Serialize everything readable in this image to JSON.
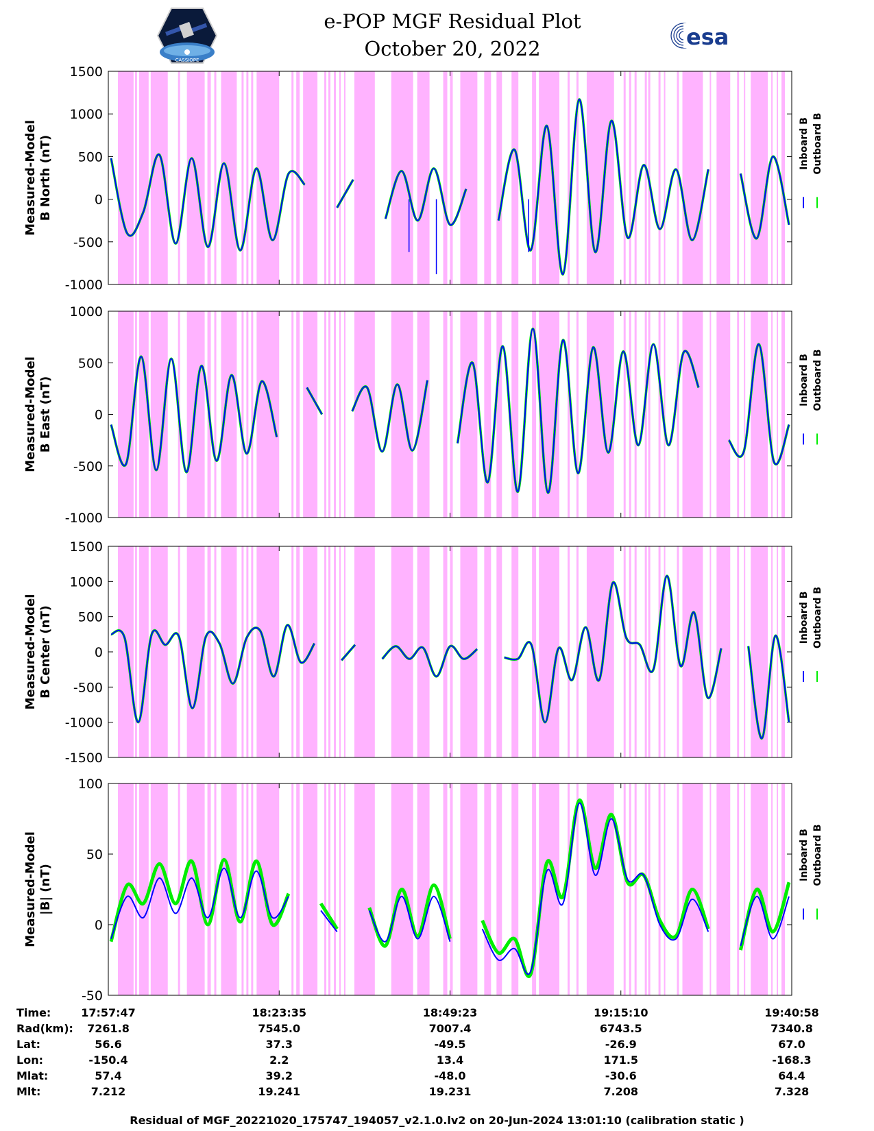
{
  "title_line1": "e-POP MGF Residual Plot",
  "title_line2": "October 20, 2022",
  "logo_left": "CASSIOPE",
  "logo_right": "esa",
  "legend": {
    "inboard": "Inboard B",
    "outboard": "Outboard B"
  },
  "colors": {
    "inboard": "#0000ff",
    "outboard": "#00ee00",
    "shade": "#ffb3ff"
  },
  "chart_data": [
    {
      "type": "line",
      "ylabel": [
        "Measured-Model",
        "B North (nT)"
      ],
      "ylim": [
        -1000,
        1500
      ],
      "yticks": [
        -1000,
        -500,
        0,
        500,
        1000,
        1500
      ],
      "series": [
        {
          "name": "Inboard B"
        },
        {
          "name": "Outboard B"
        }
      ],
      "y": [
        480,
        -400,
        -150,
        520,
        -520,
        480,
        -560,
        420,
        -600,
        360,
        -480,
        300,
        170,
        null,
        -100,
        230,
        null,
        -230,
        330,
        -250,
        360,
        -300,
        120,
        null,
        -250,
        580,
        -600,
        860,
        -880,
        1170,
        -620,
        920,
        -450,
        400,
        -350,
        350,
        -480,
        350,
        null,
        300,
        -460,
        500,
        -300
      ],
      "dips": [
        [
          0.44,
          -620
        ],
        [
          0.48,
          -880
        ],
        [
          0.615,
          -620
        ]
      ]
    },
    {
      "type": "line",
      "ylabel": [
        "Measured-Model",
        "B East (nT)"
      ],
      "ylim": [
        -1000,
        1000
      ],
      "yticks": [
        -1000,
        -500,
        0,
        500,
        1000
      ],
      "series": [
        {
          "name": "Inboard B"
        },
        {
          "name": "Outboard B"
        }
      ],
      "y": [
        -100,
        -480,
        560,
        -540,
        540,
        -560,
        470,
        -450,
        380,
        -380,
        320,
        -220,
        null,
        260,
        0,
        null,
        30,
        260,
        -360,
        290,
        -350,
        330,
        null,
        -280,
        500,
        -660,
        660,
        -750,
        830,
        -760,
        720,
        -570,
        650,
        -370,
        610,
        -300,
        680,
        -300,
        600,
        260,
        null,
        -250,
        -360,
        680,
        -460,
        -100
      ],
      "dips": []
    },
    {
      "type": "line",
      "ylabel": [
        "Measured-Model",
        "B Center (nT)"
      ],
      "ylim": [
        -1500,
        1500
      ],
      "yticks": [
        -1500,
        -1000,
        -500,
        0,
        500,
        1000,
        1500
      ],
      "series": [
        {
          "name": "Inboard B"
        },
        {
          "name": "Outboard B"
        }
      ],
      "y": [
        250,
        200,
        -1000,
        250,
        100,
        220,
        -800,
        220,
        120,
        -450,
        200,
        300,
        -350,
        380,
        -150,
        120,
        null,
        -120,
        100,
        null,
        -100,
        80,
        -100,
        60,
        -350,
        80,
        -100,
        40,
        null,
        -80,
        -100,
        100,
        -1000,
        50,
        -400,
        350,
        -400,
        980,
        200,
        100,
        -250,
        1080,
        -200,
        560,
        -650,
        50,
        null,
        80,
        -1230,
        230,
        -1000
      ],
      "dips": []
    },
    {
      "type": "line",
      "ylabel": [
        "Measured-Model",
        "|B| (nT)"
      ],
      "ylim": [
        -50,
        100
      ],
      "yticks": [
        -50,
        0,
        50,
        100
      ],
      "series": [
        {
          "name": "Inboard B",
          "y": [
            -10,
            20,
            5,
            33,
            8,
            33,
            5,
            40,
            5,
            38,
            5,
            20,
            null,
            10,
            -5,
            null,
            10,
            -12,
            20,
            -10,
            20,
            -12,
            null,
            -3,
            -25,
            -17,
            -33,
            38,
            15,
            86,
            35,
            75,
            32,
            35,
            0,
            -10,
            18,
            -5,
            null,
            -15,
            20,
            -10,
            20
          ]
        },
        {
          "name": "Outboard B",
          "y": [
            -12,
            28,
            15,
            43,
            15,
            45,
            0,
            46,
            2,
            45,
            0,
            22,
            null,
            15,
            -3,
            null,
            12,
            -15,
            25,
            -8,
            28,
            -10,
            null,
            3,
            -20,
            -10,
            -35,
            44,
            20,
            88,
            40,
            78,
            30,
            35,
            3,
            -8,
            25,
            -3,
            null,
            -18,
            25,
            -5,
            30
          ]
        }
      ],
      "dips": []
    }
  ],
  "time_axis": {
    "row_labels": [
      "Time:",
      "Rad(km):",
      "Lat:",
      "Lon:",
      "Mlat:",
      "Mlt:"
    ],
    "columns": [
      [
        "17:57:47",
        "7261.8",
        "56.6",
        "-150.4",
        "57.4",
        "7.212"
      ],
      [
        "18:23:35",
        "7545.0",
        "37.3",
        "2.2",
        "39.2",
        "19.241"
      ],
      [
        "18:49:23",
        "7007.4",
        "-49.5",
        "13.4",
        "-48.0",
        "19.231"
      ],
      [
        "19:15:10",
        "6743.5",
        "-26.9",
        "171.5",
        "-30.6",
        "7.208"
      ],
      [
        "19:40:58",
        "7340.8",
        "67.0",
        "-168.3",
        "64.4",
        "7.328"
      ]
    ]
  },
  "footer": "Residual of MGF_20221020_175747_194057_v2.1.0.lv2 on 20-Jun-2024 13:01:10 (calibration static )"
}
